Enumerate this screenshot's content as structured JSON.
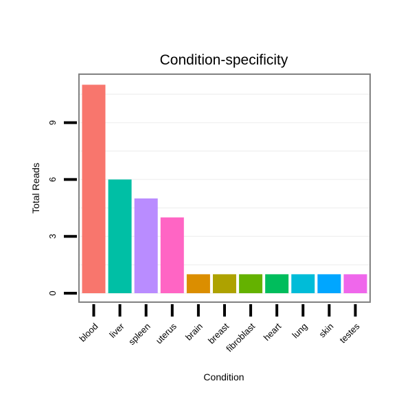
{
  "chart_data": {
    "type": "bar",
    "title": "Condition-specificity",
    "xlabel": "Condition",
    "ylabel": "Total Reads",
    "categories": [
      "blood",
      "liver",
      "spleen",
      "uterus",
      "brain",
      "breast",
      "fibroblast",
      "heart",
      "lung",
      "skin",
      "testes"
    ],
    "values": [
      11,
      6,
      5,
      4,
      1,
      1,
      1,
      1,
      1,
      1,
      1
    ],
    "colors": [
      "#F8766D",
      "#00BFA5",
      "#B98CFF",
      "#FF65C4",
      "#DB8E00",
      "#AEA200",
      "#64B200",
      "#00BD5C",
      "#00BCD8",
      "#00A6FF",
      "#EF67EB"
    ],
    "yticks": [
      0,
      3,
      6,
      9
    ],
    "ylim": [
      -0.4,
      11.8
    ],
    "grid": true,
    "legend": "none"
  }
}
